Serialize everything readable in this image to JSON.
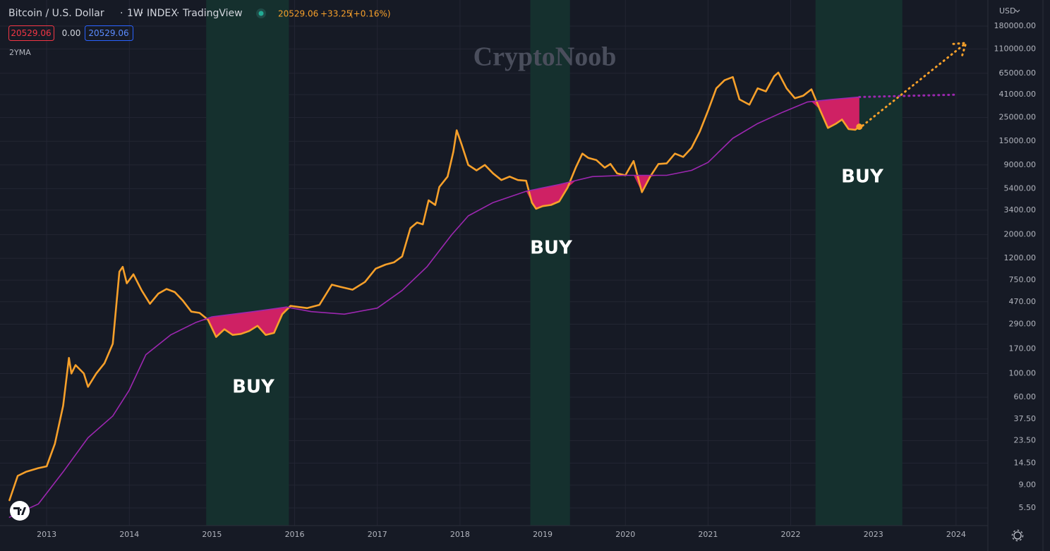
{
  "header": {
    "symbol": "Bitcoin / U.S. Dollar",
    "interval": "1W",
    "exchange": "INDEX",
    "source": "TradingView",
    "last_price": "20529.06",
    "change": "+33.25",
    "change_pct": "(+0.16%)",
    "bid": "20529.06",
    "spread": "0.00",
    "ask": "20529.06",
    "currency": "USD",
    "watermark": "CryptoNoob"
  },
  "chart_data": {
    "type": "line",
    "log_scale": true,
    "grid": true,
    "xlim": [
      2012.436,
      2024.385
    ],
    "xticks": [
      2013,
      2014,
      2015,
      2016,
      2017,
      2018,
      2019,
      2020,
      2021,
      2022,
      2023,
      2024
    ],
    "ylim": [
      3.76,
      316000
    ],
    "yticks": [
      {
        "value": 180000,
        "label": "180000.00"
      },
      {
        "value": 110000,
        "label": "110000.00"
      },
      {
        "value": 65000,
        "label": "65000.00"
      },
      {
        "value": 41000,
        "label": "41000.00"
      },
      {
        "value": 25000,
        "label": "25000.00"
      },
      {
        "value": 15000,
        "label": "15000.00"
      },
      {
        "value": 9000,
        "label": "9000.00"
      },
      {
        "value": 5400,
        "label": "5400.00"
      },
      {
        "value": 3400,
        "label": "3400.00"
      },
      {
        "value": 2000,
        "label": "2000.00"
      },
      {
        "value": 1200,
        "label": "1200.00"
      },
      {
        "value": 750,
        "label": "750.00"
      },
      {
        "value": 470,
        "label": "470.00"
      },
      {
        "value": 290,
        "label": "290.00"
      },
      {
        "value": 170,
        "label": "170.00"
      },
      {
        "value": 100,
        "label": "100.00"
      },
      {
        "value": 60,
        "label": "60.00"
      },
      {
        "value": 37.5,
        "label": "37.50"
      },
      {
        "value": 23.5,
        "label": "23.50"
      },
      {
        "value": 14.5,
        "label": "14.50"
      },
      {
        "value": 9,
        "label": "9.00"
      },
      {
        "value": 5.5,
        "label": "5.50"
      }
    ],
    "highlight_bands": [
      [
        2014.93,
        2015.93
      ],
      [
        2018.85,
        2019.33
      ],
      [
        2022.3,
        2023.35
      ]
    ],
    "band_color": "#15302e",
    "fill_color": "#e3206a",
    "annotations": [
      "BUY",
      "BUY",
      "BUY"
    ],
    "series": [
      {
        "color": "#f7a02a",
        "style": "solid",
        "x": [
          2012.55,
          2012.65,
          2012.75,
          2012.9,
          2013.0,
          2013.1,
          2013.2,
          2013.27,
          2013.3,
          2013.35,
          2013.45,
          2013.5,
          2013.6,
          2013.7,
          2013.8,
          2013.88,
          2013.92,
          2013.97,
          2014.05,
          2014.15,
          2014.25,
          2014.35,
          2014.45,
          2014.55,
          2014.65,
          2014.75,
          2014.85,
          2014.95,
          2015.05,
          2015.15,
          2015.25,
          2015.35,
          2015.45,
          2015.55,
          2015.65,
          2015.75,
          2015.85,
          2015.95,
          2016.05,
          2016.15,
          2016.3,
          2016.45,
          2016.55,
          2016.7,
          2016.85,
          2016.98,
          2017.1,
          2017.2,
          2017.3,
          2017.4,
          2017.48,
          2017.55,
          2017.62,
          2017.7,
          2017.75,
          2017.85,
          2017.92,
          2017.96,
          2018.02,
          2018.1,
          2018.2,
          2018.3,
          2018.4,
          2018.5,
          2018.6,
          2018.7,
          2018.8,
          2018.87,
          2018.92,
          2019.0,
          2019.1,
          2019.2,
          2019.3,
          2019.4,
          2019.48,
          2019.55,
          2019.65,
          2019.75,
          2019.82,
          2019.9,
          2020.0,
          2020.1,
          2020.2,
          2020.3,
          2020.4,
          2020.5,
          2020.6,
          2020.7,
          2020.8,
          2020.9,
          2021.0,
          2021.1,
          2021.2,
          2021.3,
          2021.38,
          2021.5,
          2021.6,
          2021.7,
          2021.8,
          2021.85,
          2021.95,
          2022.05,
          2022.15,
          2022.25,
          2022.35,
          2022.45,
          2022.55,
          2022.62,
          2022.7,
          2022.78,
          2022.83
        ],
        "values": [
          6.5,
          11,
          12,
          13,
          13.5,
          22,
          50,
          140,
          100,
          120,
          100,
          75,
          100,
          125,
          190,
          900,
          1000,
          700,
          850,
          600,
          450,
          560,
          620,
          580,
          480,
          380,
          370,
          320,
          220,
          260,
          230,
          235,
          250,
          280,
          230,
          240,
          360,
          430,
          420,
          410,
          440,
          680,
          650,
          610,
          720,
          960,
          1050,
          1100,
          1250,
          2300,
          2600,
          2500,
          4200,
          3800,
          5600,
          7000,
          12000,
          19000,
          14000,
          9000,
          8000,
          9000,
          7500,
          6500,
          7000,
          6500,
          6400,
          4000,
          3500,
          3700,
          3800,
          4100,
          5500,
          8500,
          11500,
          10500,
          10000,
          8500,
          9200,
          7500,
          7200,
          9800,
          5000,
          7000,
          9200,
          9300,
          11500,
          10700,
          13000,
          18500,
          29000,
          47000,
          56000,
          60000,
          37000,
          33000,
          47000,
          44000,
          61000,
          66000,
          47000,
          38000,
          40000,
          46000,
          30000,
          20000,
          22000,
          24000,
          19500,
          19200,
          20529.06
        ]
      },
      {
        "name": "2YMA",
        "color": "#9c27b0",
        "style": "solid",
        "x": [
          2012.55,
          2012.9,
          2013.2,
          2013.5,
          2013.8,
          2014.0,
          2014.2,
          2014.5,
          2014.8,
          2015.0,
          2015.5,
          2015.9,
          2016.2,
          2016.6,
          2017.0,
          2017.3,
          2017.6,
          2017.9,
          2018.1,
          2018.4,
          2018.8,
          2019.2,
          2019.6,
          2020.0,
          2020.5,
          2020.8,
          2021.0,
          2021.3,
          2021.6,
          2021.9,
          2022.2,
          2022.5,
          2022.83
        ],
        "values": [
          4.5,
          6,
          12,
          25,
          40,
          70,
          150,
          230,
          300,
          340,
          380,
          420,
          380,
          360,
          410,
          600,
          1000,
          2000,
          3000,
          4000,
          5100,
          5900,
          7000,
          7200,
          7200,
          8000,
          9500,
          16000,
          22000,
          28000,
          35000,
          37000,
          39000
        ]
      },
      {
        "color": "#f7a02a",
        "style": "dotted",
        "x": [
          2022.87,
          2024.12
        ],
        "values": [
          21000,
          125000
        ]
      },
      {
        "color": "#9c27b0",
        "style": "dotted",
        "x": [
          2022.83,
          2024.0
        ],
        "values": [
          39000,
          41000
        ]
      }
    ]
  }
}
